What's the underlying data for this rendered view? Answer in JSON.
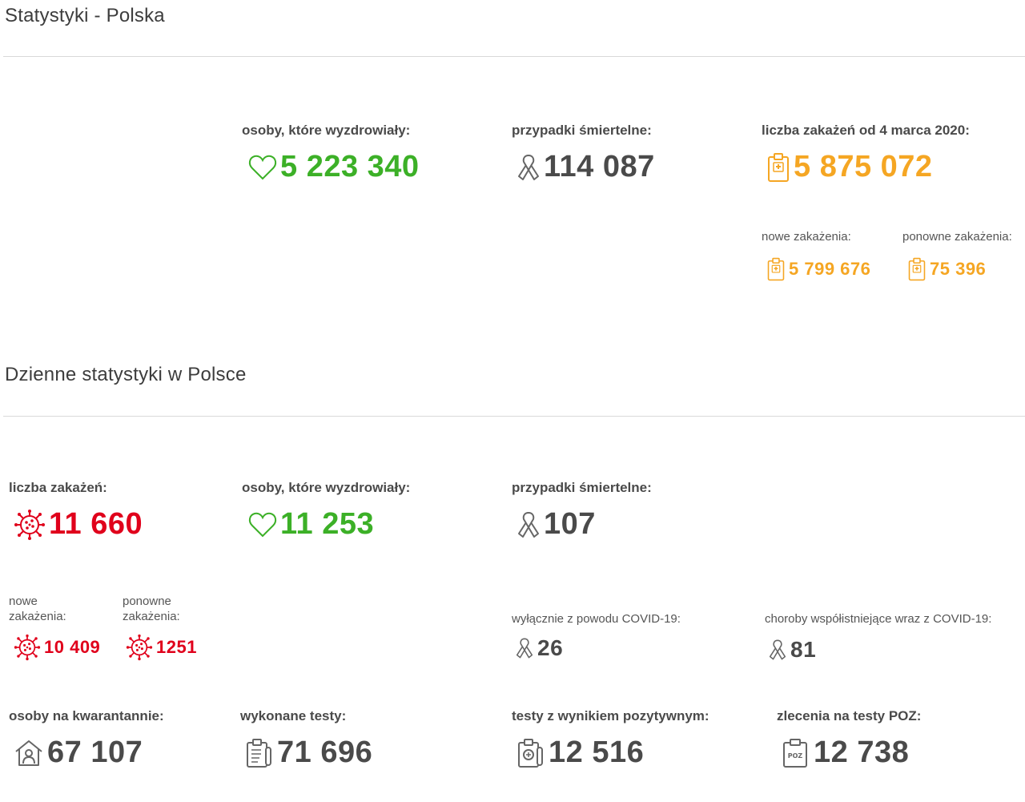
{
  "sections": {
    "total_title": "Statystyki - Polska",
    "daily_title": "Dzienne statystyki w Polsce"
  },
  "total": {
    "recovered": {
      "label": "osoby, które wyzdrowiały:",
      "value": "5 223 340",
      "icon": "heart-icon"
    },
    "deaths": {
      "label": "przypadki śmiertelne:",
      "value": "114 087",
      "icon": "ribbon-icon"
    },
    "infections": {
      "label": "liczba zakażeń od 4 marca 2020:",
      "value": "5 875 072",
      "icon": "medical-clipboard-icon"
    },
    "new_infections": {
      "label": "nowe zakażenia:",
      "value": "5 799 676",
      "icon": "medical-clipboard-icon"
    },
    "reinfections": {
      "label": "ponowne zakażenia:",
      "value": "75 396",
      "icon": "medical-clipboard-icon"
    }
  },
  "daily": {
    "infections": {
      "label": "liczba zakażeń:",
      "value": "11 660",
      "icon": "virus-icon"
    },
    "recovered": {
      "label": "osoby, które wyzdrowiały:",
      "value": "11 253",
      "icon": "heart-icon"
    },
    "deaths": {
      "label": "przypadki śmiertelne:",
      "value": "107",
      "icon": "ribbon-icon"
    },
    "new_infections": {
      "label_line1": "nowe",
      "label_line2": "zakażenia:",
      "value": "10 409",
      "icon": "virus-icon"
    },
    "reinfections": {
      "label_line1": "ponowne",
      "label_line2": "zakażenia:",
      "value": "1251",
      "icon": "virus-icon"
    },
    "deaths_covid_only": {
      "label": "wyłącznie z powodu COVID-19:",
      "value": "26",
      "icon": "ribbon-icon"
    },
    "deaths_comorbid": {
      "label": "choroby współistniejące wraz z COVID-19:",
      "value": "81",
      "icon": "ribbon-icon"
    },
    "quarantine": {
      "label": "osoby na kwarantannie:",
      "value": "67 107",
      "icon": "house-person-icon"
    },
    "tests": {
      "label": "wykonane testy:",
      "value": "71 696",
      "icon": "test-clipboard-icon"
    },
    "positive_tests": {
      "label": "testy z wynikiem pozytywnym:",
      "value": "12 516",
      "icon": "positive-test-icon"
    },
    "poz_orders": {
      "label": "zlecenia na testy POZ:",
      "value": "12 738",
      "icon": "poz-clipboard-icon",
      "icon_text": "POZ"
    }
  },
  "colors": {
    "green": "#3cb027",
    "gray": "#4a4a4a",
    "orange": "#f5a623",
    "red": "#e0001b"
  }
}
